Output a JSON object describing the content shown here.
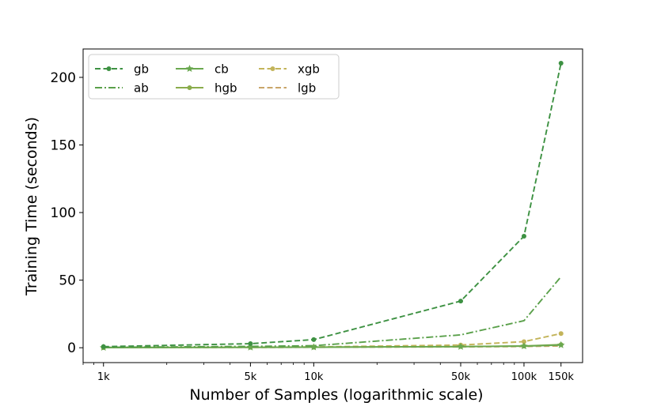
{
  "chart_data": {
    "type": "line",
    "title": "",
    "xlabel": "Number of Samples (logarithmic scale)",
    "ylabel": "Training Time (seconds)",
    "xscale": "log",
    "xlim": [
      800,
      190000
    ],
    "ylim": [
      -11,
      221
    ],
    "grid": false,
    "legend_position": "top-left",
    "x": [
      1000,
      5000,
      10000,
      50000,
      100000,
      150000
    ],
    "x_tick_labels": [
      "1k",
      "5k",
      "10k",
      "50k",
      "100k",
      "150k"
    ],
    "y_ticks": [
      0,
      50,
      100,
      150,
      200
    ],
    "series": [
      {
        "name": "gb",
        "color": "#3d9142",
        "linestyle": "dashed",
        "marker": "dot",
        "values": [
          0.8,
          3.0,
          6.0,
          34.5,
          82.5,
          210.5
        ]
      },
      {
        "name": "ab",
        "color": "#5aa04a",
        "linestyle": "dashdot",
        "marker": "none",
        "values": [
          0.3,
          1.0,
          1.5,
          9.5,
          20.0,
          52.5
        ]
      },
      {
        "name": "cb",
        "color": "#6aa84f",
        "linestyle": "solid",
        "marker": "star",
        "values": [
          0.1,
          0.3,
          0.4,
          0.8,
          1.2,
          2.0
        ]
      },
      {
        "name": "hgb",
        "color": "#8aac4c",
        "linestyle": "solid",
        "marker": "dot",
        "values": [
          0.2,
          0.3,
          0.4,
          0.9,
          1.3,
          2.3
        ]
      },
      {
        "name": "xgb",
        "color": "#c3b45a",
        "linestyle": "dashed",
        "marker": "dot",
        "values": [
          0.1,
          0.4,
          0.6,
          2.0,
          4.5,
          10.5
        ]
      },
      {
        "name": "lgb",
        "color": "#c9a56a",
        "linestyle": "dashed",
        "marker": "none",
        "values": [
          0.1,
          0.2,
          0.3,
          0.6,
          0.9,
          1.3
        ]
      }
    ]
  }
}
